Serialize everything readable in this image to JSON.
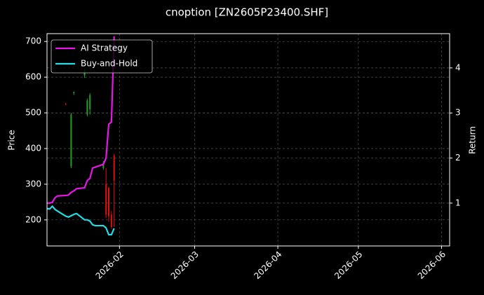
{
  "chart_data": {
    "type": "candlestick",
    "title": "cnoption [ZN2605P23400.SHF]",
    "y_label": "Price",
    "y2_label": "Return",
    "x": [
      "2026-01-05",
      "2026-01-06",
      "2026-01-07",
      "2026-01-08",
      "2026-01-09",
      "2026-01-12",
      "2026-01-13",
      "2026-01-14",
      "2026-01-15",
      "2026-01-16",
      "2026-01-19",
      "2026-01-20",
      "2026-01-21",
      "2026-01-22",
      "2026-01-23",
      "2026-01-26",
      "2026-01-27",
      "2026-01-28",
      "2026-01-29",
      "2026-01-30"
    ],
    "open": [
      null,
      null,
      null,
      null,
      null,
      525,
      null,
      350,
      555,
      null,
      605,
      495,
      510,
      null,
      null,
      345,
      300,
      290,
      215,
      380
    ],
    "high": [
      null,
      null,
      null,
      null,
      null,
      528,
      null,
      500,
      560,
      null,
      622,
      540,
      555,
      null,
      null,
      365,
      345,
      292,
      225,
      385
    ],
    "low": [
      null,
      null,
      null,
      null,
      null,
      522,
      null,
      345,
      550,
      null,
      598,
      490,
      495,
      null,
      null,
      340,
      205,
      195,
      175,
      180
    ],
    "close": [
      null,
      null,
      null,
      null,
      null,
      524,
      null,
      495,
      558,
      null,
      618,
      535,
      550,
      null,
      null,
      360,
      215,
      210,
      180,
      310
    ],
    "up_color": "#22a022",
    "down_color": "#e01010",
    "series": [
      {
        "name": "AI Strategy",
        "color": "#e815e8",
        "axis": "y2",
        "values": [
          1.0,
          1.0,
          1.02,
          1.12,
          1.16,
          1.17,
          1.18,
          1.24,
          1.27,
          1.32,
          1.34,
          1.5,
          1.55,
          1.78,
          1.8,
          1.86,
          2.0,
          2.75,
          2.8,
          4.7
        ]
      },
      {
        "name": "Buy-and-Hold",
        "color": "#22dde8",
        "axis": "y2",
        "values": [
          0.88,
          0.87,
          0.93,
          0.86,
          0.82,
          0.71,
          0.69,
          0.72,
          0.75,
          0.77,
          0.63,
          0.63,
          0.6,
          0.52,
          0.5,
          0.5,
          0.45,
          0.3,
          0.3,
          0.44
        ]
      }
    ],
    "xlim": [
      "2026-01-05",
      "2026-06-04"
    ],
    "xticks": [
      {
        "value": "2026-02-01",
        "label": "2026-02"
      },
      {
        "value": "2026-03-01",
        "label": "2026-03"
      },
      {
        "value": "2026-04-01",
        "label": "2026-04"
      },
      {
        "value": "2026-05-01",
        "label": "2026-05"
      },
      {
        "value": "2026-06-01",
        "label": "2026-06"
      }
    ],
    "ylim": [
      127,
      722
    ],
    "yticks": [
      200,
      300,
      400,
      500,
      600,
      700
    ],
    "y2lim": [
      0.05,
      4.76
    ],
    "y2ticks": [
      1,
      2,
      3,
      4
    ],
    "grid": true,
    "legend": "upper left"
  }
}
